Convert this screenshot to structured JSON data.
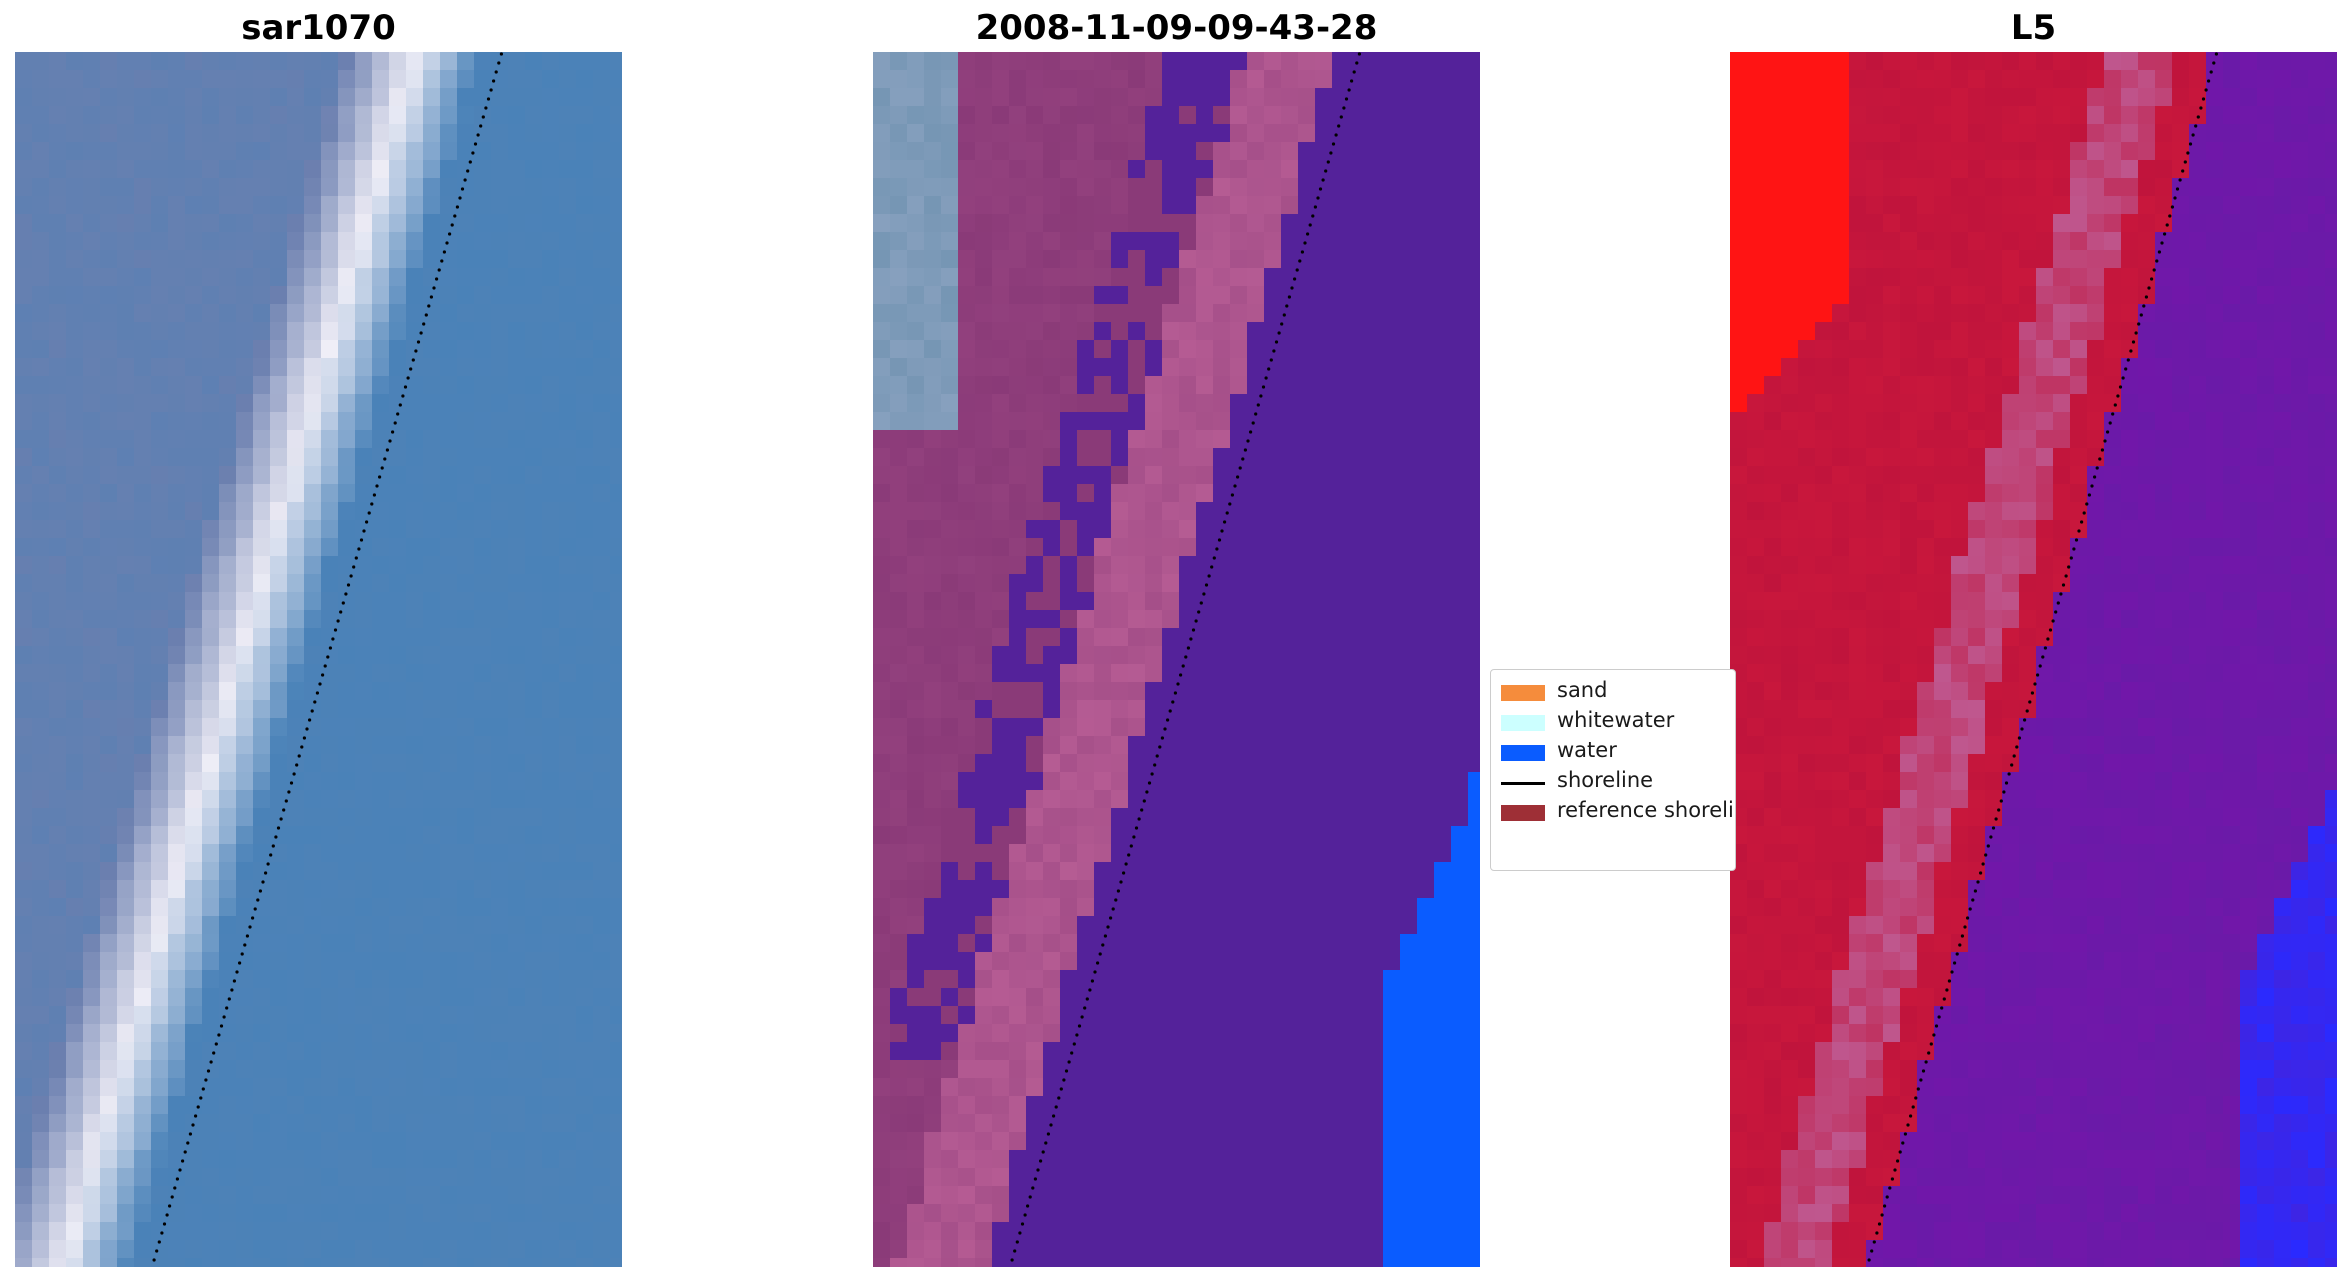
{
  "panels": [
    {
      "title": "sar1070"
    },
    {
      "title": "2008-11-09-09-43-28"
    },
    {
      "title": "L5"
    }
  ],
  "legend": {
    "items": [
      {
        "label": "sand",
        "color": "#f58c3c",
        "kind": "patch"
      },
      {
        "label": "whitewater",
        "color": "#ccffff",
        "kind": "patch"
      },
      {
        "label": "water",
        "color": "#0a5cff",
        "kind": "patch"
      },
      {
        "label": "shoreline",
        "color": "#000000",
        "kind": "line"
      },
      {
        "label": "reference shoreline",
        "color": "#9e2f36",
        "kind": "patch"
      }
    ]
  },
  "colors": {
    "rgb_water": "#4a82b8",
    "rgb_sand": "#6b7faf",
    "rgb_whitewater": "#f2f0f8",
    "class_sand_overlay": "#8a3a78",
    "class_whitewater_overlay": "#c0649a",
    "class_water_overlay": "#54229a",
    "class_water": "#0a5cff",
    "mndwi_land": "#c0143c",
    "mndwi_water": "#6a1aa8",
    "mndwi_sat": "#2a2aff"
  }
}
